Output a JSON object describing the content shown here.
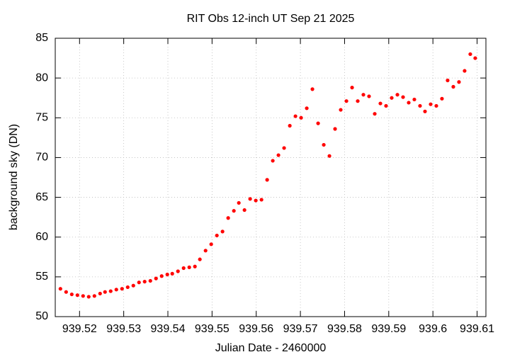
{
  "chart_data": {
    "type": "scatter",
    "title": "RIT Obs 12-inch UT Sep 21 2025",
    "xlabel": "Julian Date - 2460000",
    "ylabel": "background sky (DN)",
    "color": "#ff0000",
    "grid": true,
    "xlim": [
      939.5145,
      939.612
    ],
    "ylim": [
      50,
      85
    ],
    "xticks": [
      939.52,
      939.53,
      939.54,
      939.55,
      939.56,
      939.57,
      939.58,
      939.59,
      939.6,
      939.61
    ],
    "yticks": [
      50,
      55,
      60,
      65,
      70,
      75,
      80,
      85
    ],
    "x": [
      939.51567,
      939.51696,
      939.51824,
      939.51952,
      939.5208,
      939.52208,
      939.52337,
      939.52465,
      939.52577,
      939.52705,
      939.52833,
      939.52962,
      939.5309,
      939.53218,
      939.53346,
      939.53474,
      939.53603,
      939.53731,
      939.53859,
      939.53987,
      939.54099,
      939.54228,
      939.54356,
      939.54484,
      939.54612,
      939.54724,
      939.54853,
      939.54981,
      939.55109,
      939.55237,
      939.55365,
      939.55494,
      939.55606,
      939.55734,
      939.55862,
      939.5599,
      939.56119,
      939.56247,
      939.56375,
      939.56503,
      939.56631,
      939.5676,
      939.56888,
      939.57016,
      939.57144,
      939.57272,
      939.57401,
      939.57529,
      939.57657,
      939.57785,
      939.57913,
      939.58042,
      939.5817,
      939.58298,
      939.58426,
      939.58554,
      939.58683,
      939.58811,
      939.58939,
      939.59067,
      939.59196,
      939.59324,
      939.59452,
      939.5958,
      939.59708,
      939.59821,
      939.59949,
      939.60077,
      939.60205,
      939.60333,
      939.60462,
      939.6059,
      939.60718,
      939.60846,
      939.60958
    ],
    "values": [
      53.5,
      53.1,
      52.8,
      52.7,
      52.6,
      52.5,
      52.6,
      52.9,
      53.1,
      53.2,
      53.4,
      53.5,
      53.7,
      53.9,
      54.3,
      54.4,
      54.5,
      54.8,
      55.1,
      55.3,
      55.4,
      55.7,
      56.1,
      56.2,
      56.3,
      57.2,
      58.3,
      59.1,
      60.2,
      60.7,
      62.4,
      63.3,
      64.3,
      63.4,
      64.8,
      64.6,
      64.7,
      67.2,
      69.6,
      70.3,
      71.2,
      74.0,
      75.2,
      75.0,
      76.2,
      78.6,
      74.3,
      71.6,
      70.2,
      73.6,
      76.0,
      77.1,
      78.8,
      77.1,
      77.9,
      77.7,
      75.5,
      76.8,
      76.5,
      77.5,
      77.9,
      77.6,
      76.9,
      77.3,
      76.5,
      75.8,
      76.7,
      76.5,
      77.4,
      79.7,
      78.9,
      79.5,
      80.9,
      83.0,
      82.5
    ]
  }
}
